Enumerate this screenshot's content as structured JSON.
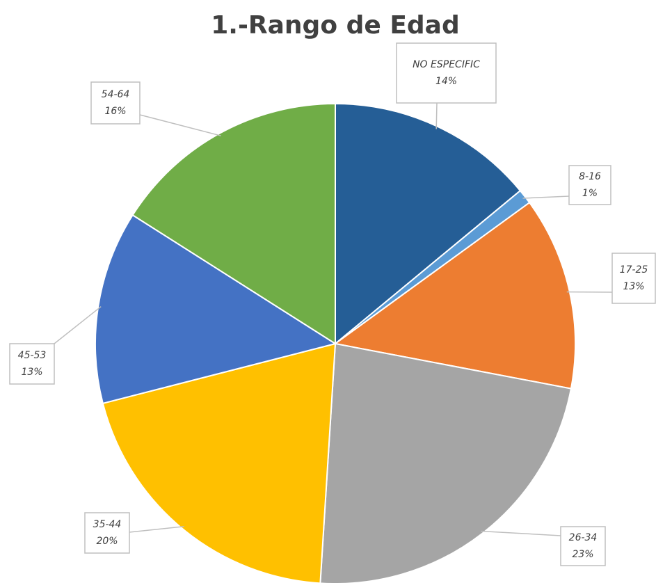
{
  "chart_data": {
    "type": "pie",
    "title": "1.-Rango de Edad",
    "categories": [
      "NO ESPECIFIC",
      "8-16",
      "17-25",
      "26-34",
      "35-44",
      "45-53",
      "54-64"
    ],
    "values": [
      14,
      1,
      13,
      23,
      20,
      13,
      16
    ],
    "value_labels": [
      "14%",
      "1%",
      "13%",
      "23%",
      "20%",
      "13%",
      "16%"
    ],
    "colors": [
      "#255e96",
      "#5b9bd5",
      "#ed7d31",
      "#a5a5a5",
      "#ffc000",
      "#4472c4",
      "#70ad47"
    ]
  }
}
